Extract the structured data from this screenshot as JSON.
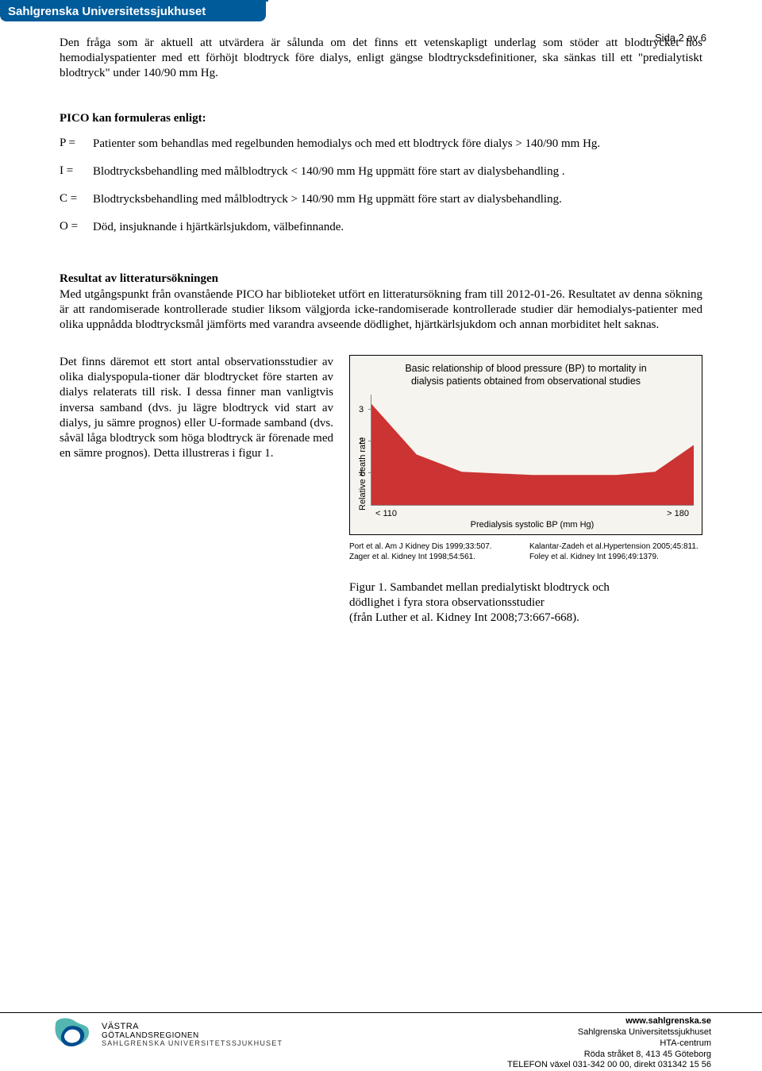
{
  "header": {
    "org": "Sahlgrenska Universitetssjukhuset"
  },
  "page_label": "Sida 2 av 6",
  "intro_para": "Den fråga som är aktuell att utvärdera är sålunda om det finns ett vetenskapligt underlag som stöder att blodtrycket hos hemodialyspatienter med ett förhöjt blodtryck före dialys, enligt gängse blodtrycksdefinitioner, ska sänkas till ett \"predialytiskt blodtryck\" under 140/90 mm Hg.",
  "pico_heading": "PICO kan formuleras enligt:",
  "pico": {
    "P": {
      "label": "P =",
      "text": "Patienter som behandlas med regelbunden hemodialys och med ett blodtryck före dialys > 140/90 mm Hg."
    },
    "I": {
      "label": "I =",
      "text": "Blodtrycksbehandling med målblodtryck < 140/90 mm Hg uppmätt före start av dialysbehandling ."
    },
    "C": {
      "label": "C =",
      "text": "Blodtrycksbehandling med målblodtryck > 140/90 mm Hg uppmätt före start av dialysbehandling."
    },
    "O": {
      "label": "O =",
      "text": "Död, insjuknande i hjärtkärlsjukdom, välbefinnande."
    }
  },
  "results": {
    "heading": "Resultat av litteratursökningen",
    "body": "Med utgångspunkt från ovanstående PICO har biblioteket utfört en litteratursökning fram till 2012-01-26. Resultatet av denna sökning är att randomiserade kontrollerade studier liksom välgjorda icke-randomiserade kontrollerade studier där hemodialys-patienter med olika uppnådda blodtrycksmål jämförts med varandra avseende dödlighet, hjärtkärlsjukdom och annan morbiditet helt saknas."
  },
  "obs_para": "Det finns däremot ett stort antal observationsstudier av olika dialyspopula-tioner där blodtrycket före starten av dialys relaterats till risk. I dessa finner man vanligtvis inversa samband (dvs. ju lägre blodtryck vid start av dialys, ju sämre prognos) eller U-formade samband (dvs. såväl låga blodtryck som höga blodtryck är förenade med en sämre prognos). Detta illustreras i figur 1.",
  "chart": {
    "type": "area",
    "title_line1": "Basic relationship of blood pressure (BP) to mortality in",
    "title_line2": "dialysis patients obtained from observational studies",
    "y_label": "Relative death rate",
    "x_label": "Predialysis systolic BP (mm Hg)",
    "y_ticks": [
      1,
      2,
      3
    ],
    "y_max": 3.5,
    "x_tick_left": "< 110",
    "x_tick_right": "> 180",
    "fill_color": "#cc3333",
    "background_color": "#f6f4ee",
    "border_color": "#000000",
    "axis_color": "#888888",
    "title_fontsize": 12.5,
    "label_fontsize": 11,
    "curve_points_pct": [
      {
        "x": 0,
        "y": 3.2
      },
      {
        "x": 14,
        "y": 1.6
      },
      {
        "x": 28,
        "y": 1.05
      },
      {
        "x": 50,
        "y": 0.95
      },
      {
        "x": 76,
        "y": 0.95
      },
      {
        "x": 88,
        "y": 1.05
      },
      {
        "x": 100,
        "y": 1.9
      }
    ]
  },
  "refs": {
    "left": [
      "Port et al. Am J Kidney Dis 1999;33:507.",
      "Zager et al. Kidney Int 1998;54:561."
    ],
    "right": [
      "Kalantar-Zadeh et al.Hypertension 2005;45:811.",
      "Foley et al. Kidney Int 1996;49:1379."
    ]
  },
  "fig_caption": {
    "line1": "Figur 1. Sambandet mellan predialytiskt blodtryck och",
    "line2": "dödlighet i fyra stora observationsstudier",
    "line3": "(från Luther et al. Kidney Int 2008;73:667-668)."
  },
  "footer": {
    "logo_colors": {
      "teal": "#53b6b1",
      "blue": "#004b8d"
    },
    "left": {
      "line1": "VÄSTRA",
      "line2": "GÖTALANDSREGIONEN",
      "line3": "SAHLGRENSKA UNIVERSITETSSJUKHUSET"
    },
    "right": {
      "url": "www.sahlgrenska.se",
      "l2": "Sahlgrenska Universitetssjukhuset",
      "l3": "HTA-centrum",
      "l4": "Röda stråket 8, 413 45 Göteborg",
      "l5": "TELEFON växel 031-342 00 00, direkt 031342 15 56"
    }
  }
}
